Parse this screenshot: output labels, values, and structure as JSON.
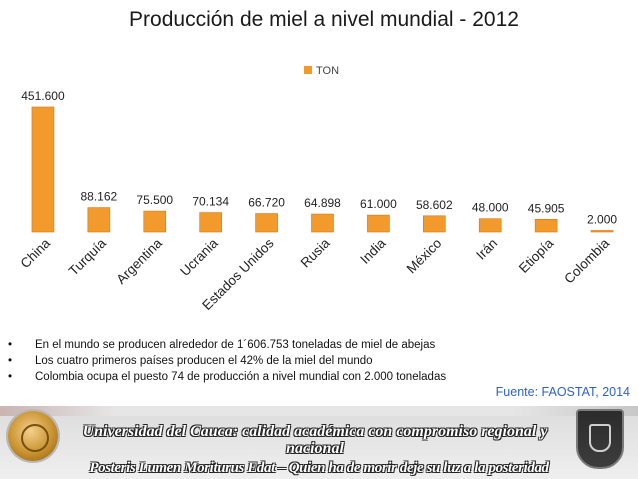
{
  "title": "Producción de miel a nivel mundial - 2012",
  "chart_data": {
    "type": "bar",
    "legend": "TON",
    "legend_position": "top-center",
    "series": [
      {
        "name": "TON",
        "color": "#f39a2d"
      }
    ],
    "categories": [
      "China",
      "Turquía",
      "Argentina",
      "Ucrania",
      "Estados Unidos",
      "Rusia",
      "India",
      "México",
      "Irán",
      "Etiopía",
      "Colombia"
    ],
    "values": [
      451600,
      88162,
      75500,
      70134,
      66720,
      64898,
      61000,
      58602,
      48000,
      45905,
      2000
    ],
    "data_labels": [
      "451.600",
      "88.162",
      "75.500",
      "70.134",
      "66.720",
      "64.898",
      "61.000",
      "58.602",
      "48.000",
      "45.905",
      "2.000"
    ],
    "ylim": [
      0,
      451600
    ],
    "grid": false
  },
  "bullets": [
    "En el mundo se producen alrededor de 1´606.753 toneladas de miel de abejas",
    "Los cuatro primeros países producen el 42% de la miel del mundo",
    "Colombia ocupa el puesto 74 de producción a nivel mundial con 2.000 toneladas"
  ],
  "bullet_symbol": "•",
  "source": "Fuente: FAOSTAT, 2014",
  "footer": {
    "motto": "Universidad del Cauca: calidad académica con compromiso regional y nacional",
    "latin": "Posteris Lumen Moriturus Edat – Quien ha de morir deje su luz a la posteridad"
  }
}
